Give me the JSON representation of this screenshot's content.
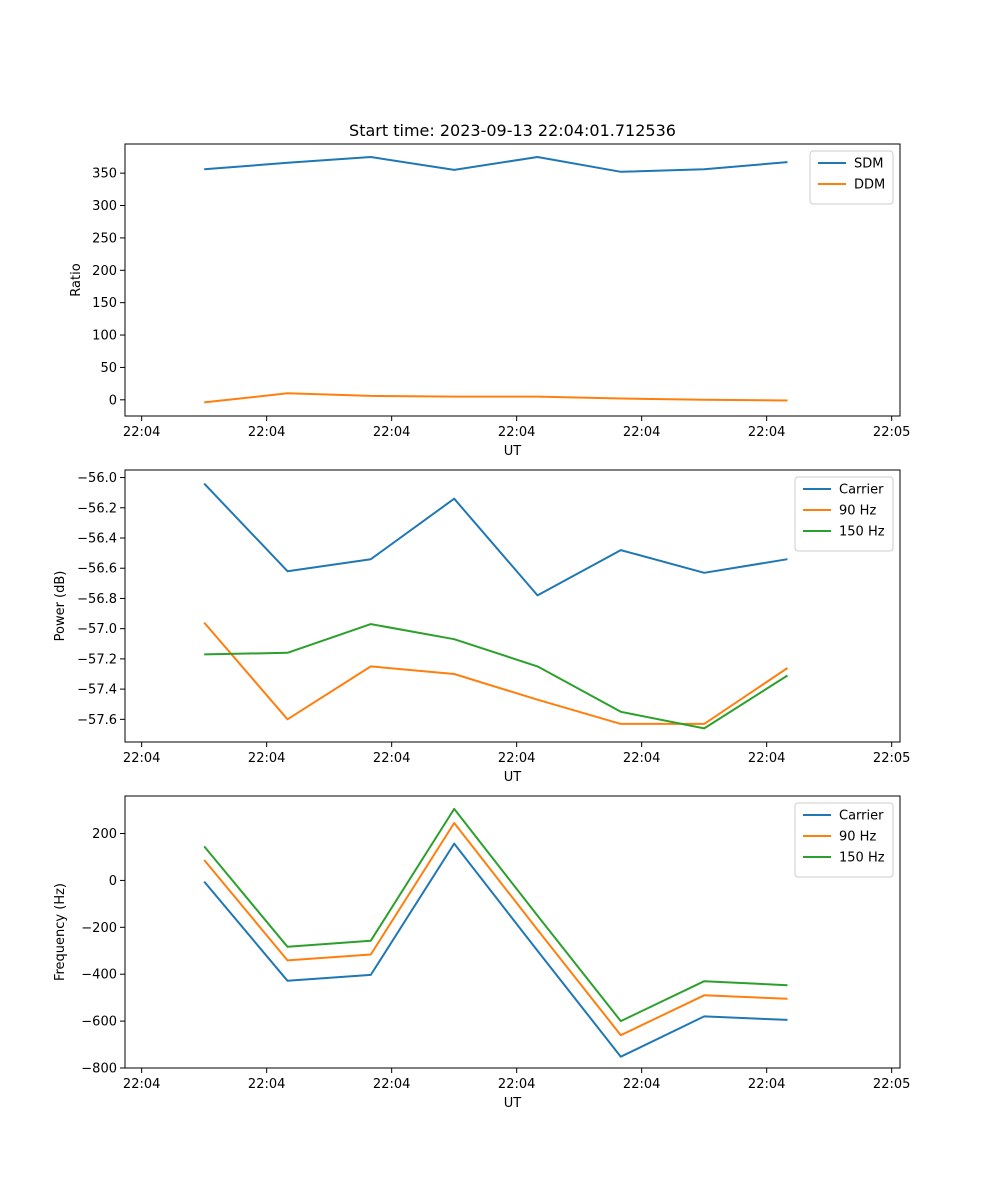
{
  "chart_data": [
    {
      "type": "line",
      "title": "Start time: 2023-09-13 22:04:01.712536",
      "xlabel": "UT",
      "ylabel": "Ratio",
      "x": [
        0.75,
        1.75,
        2.75,
        3.75,
        4.75,
        5.75,
        6.75,
        7.75
      ],
      "xlim": [
        -0.2,
        9.1
      ],
      "x_ticks": [
        0,
        1.5,
        3,
        4.5,
        6,
        7.5,
        9
      ],
      "x_tick_labels": [
        "22:04",
        "22:04",
        "22:04",
        "22:04",
        "22:04",
        "22:04",
        "22:05"
      ],
      "ylim": [
        -25,
        395
      ],
      "y_ticks": [
        0,
        50,
        100,
        150,
        200,
        250,
        300,
        350
      ],
      "y_tick_labels": [
        "0",
        "50",
        "100",
        "150",
        "200",
        "250",
        "300",
        "350"
      ],
      "legend_position": "top-right",
      "series": [
        {
          "name": "SDM",
          "color": "#1f77b4",
          "values": [
            356,
            366,
            375,
            355,
            375,
            352,
            356,
            367
          ]
        },
        {
          "name": "DDM",
          "color": "#ff7f0e",
          "values": [
            -4,
            10,
            6,
            5,
            5,
            2,
            0,
            -1
          ]
        }
      ]
    },
    {
      "type": "line",
      "title": "",
      "xlabel": "UT",
      "ylabel": "Power (dB)",
      "x": [
        0.75,
        1.75,
        2.75,
        3.75,
        4.75,
        5.75,
        6.75,
        7.75
      ],
      "xlim": [
        -0.2,
        9.1
      ],
      "x_ticks": [
        0,
        1.5,
        3,
        4.5,
        6,
        7.5,
        9
      ],
      "x_tick_labels": [
        "22:04",
        "22:04",
        "22:04",
        "22:04",
        "22:04",
        "22:04",
        "22:05"
      ],
      "ylim": [
        -57.75,
        -55.95
      ],
      "y_ticks": [
        -57.6,
        -57.4,
        -57.2,
        -57.0,
        -56.8,
        -56.6,
        -56.4,
        -56.2,
        -56.0
      ],
      "y_tick_labels": [
        "−57.6",
        "−57.4",
        "−57.2",
        "−57.0",
        "−56.8",
        "−56.6",
        "−56.4",
        "−56.2",
        "−56.0"
      ],
      "legend_position": "top-right",
      "series": [
        {
          "name": "Carrier",
          "color": "#1f77b4",
          "values": [
            -56.04,
            -56.62,
            -56.54,
            -56.14,
            -56.78,
            -56.48,
            -56.63,
            -56.54
          ]
        },
        {
          "name": "90 Hz",
          "color": "#ff7f0e",
          "values": [
            -56.96,
            -57.6,
            -57.25,
            -57.3,
            -57.47,
            -57.63,
            -57.63,
            -57.26
          ]
        },
        {
          "name": "150 Hz",
          "color": "#2ca02c",
          "values": [
            -57.17,
            -57.16,
            -56.97,
            -57.07,
            -57.25,
            -57.55,
            -57.66,
            -57.31
          ]
        }
      ]
    },
    {
      "type": "line",
      "title": "",
      "xlabel": "UT",
      "ylabel": "Frequency (Hz)",
      "x": [
        0.75,
        1.75,
        2.75,
        3.75,
        4.75,
        5.75,
        6.75,
        7.75
      ],
      "xlim": [
        -0.2,
        9.1
      ],
      "x_ticks": [
        0,
        1.5,
        3,
        4.5,
        6,
        7.5,
        9
      ],
      "x_tick_labels": [
        "22:04",
        "22:04",
        "22:04",
        "22:04",
        "22:04",
        "22:04",
        "22:05"
      ],
      "ylim": [
        -800,
        360
      ],
      "y_ticks": [
        -800,
        -600,
        -400,
        -200,
        0,
        200
      ],
      "y_tick_labels": [
        "−800",
        "−600",
        "−400",
        "−200",
        "0",
        "200"
      ],
      "legend_position": "top-right",
      "series": [
        {
          "name": "Carrier",
          "color": "#1f77b4",
          "values": [
            -5,
            -428,
            -403,
            157,
            -300,
            -752,
            -580,
            -595
          ]
        },
        {
          "name": "90 Hz",
          "color": "#ff7f0e",
          "values": [
            87,
            -341,
            -316,
            245,
            -210,
            -660,
            -490,
            -505
          ]
        },
        {
          "name": "150 Hz",
          "color": "#2ca02c",
          "values": [
            145,
            -283,
            -257,
            305,
            -150,
            -600,
            -430,
            -447
          ]
        }
      ]
    }
  ]
}
